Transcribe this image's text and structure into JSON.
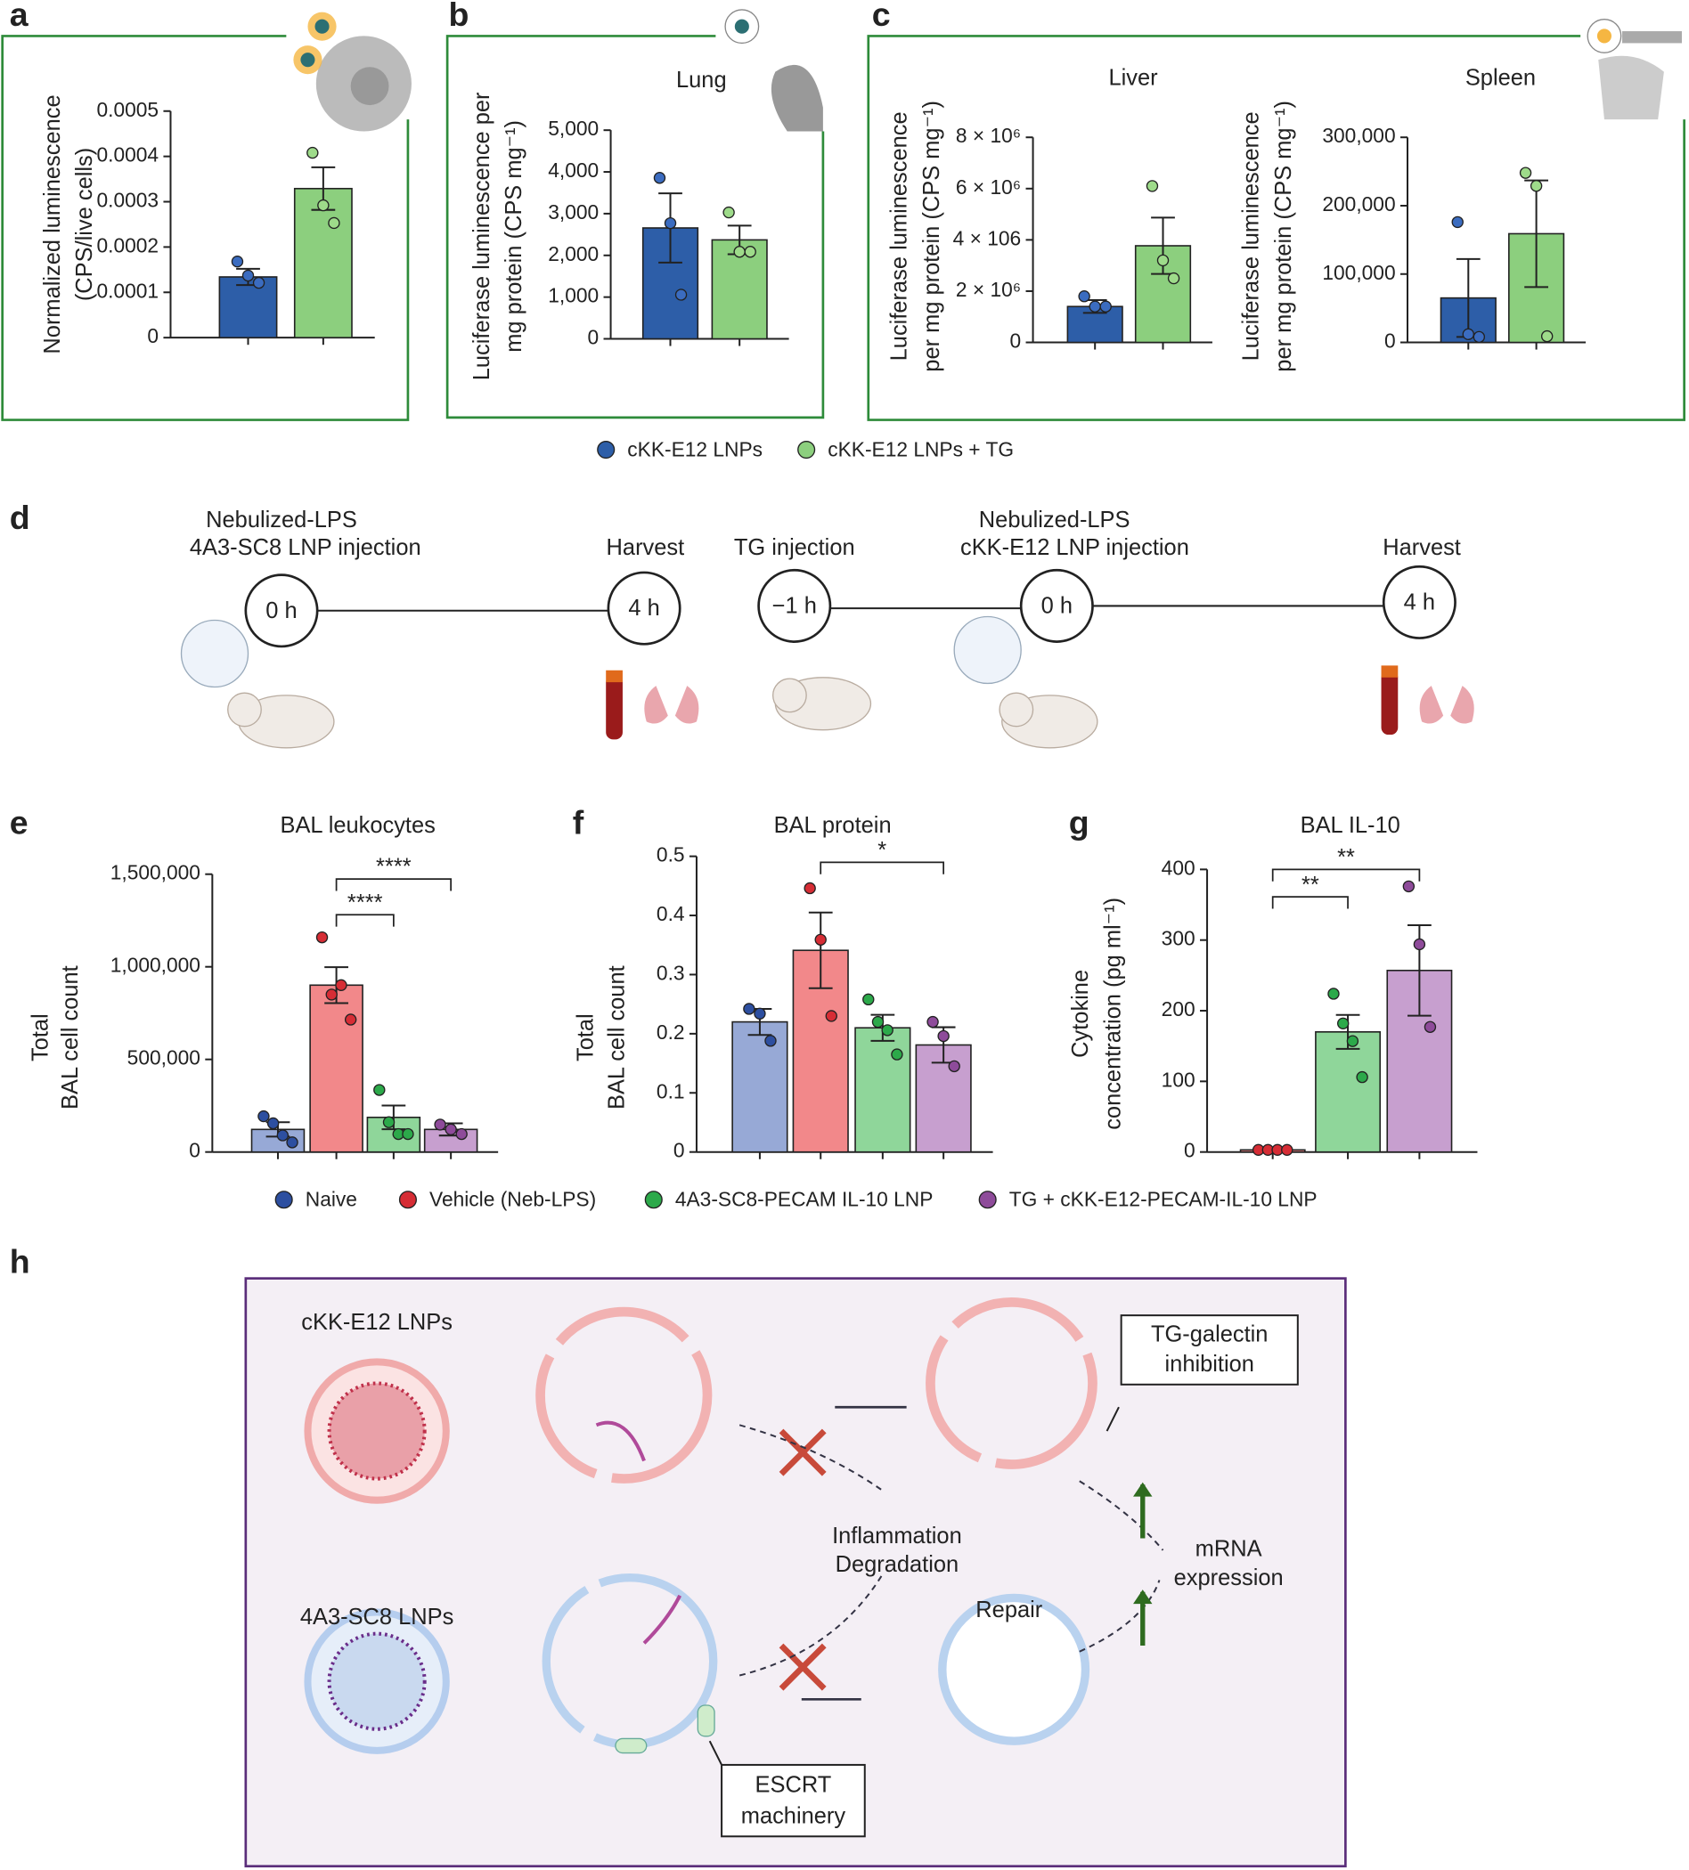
{
  "chart_data": [
    {
      "type": "bar",
      "panel": "a",
      "ylabel": [
        "Normalized luminescence",
        "(CPS/live cells)"
      ],
      "ylim": [
        0,
        0.0005
      ],
      "yticks": [
        0,
        0.0001,
        0.0002,
        0.0003,
        0.0004,
        0.0005
      ],
      "bars": [
        {
          "color": "#2d5ea8",
          "point_color": "#3b6cc0",
          "value": 0.000134,
          "error": 1.8e-05,
          "points": [
            0.000168,
            0.000137,
            0.000121
          ]
        },
        {
          "color": "#8ccf7e",
          "point_color": "#9edb8a",
          "value": 0.000329,
          "error": 4.7e-05,
          "points": [
            0.000408,
            0.000292,
            0.000253
          ]
        }
      ]
    },
    {
      "type": "bar",
      "panel": "b",
      "title": "Lung",
      "ylabel": [
        "Luciferase luminescence per",
        "mg protein (CPS mg⁻¹)"
      ],
      "ylim": [
        0,
        5000
      ],
      "yticks": [
        0,
        {
          "value": 1000,
          "label": "1,000"
        },
        {
          "value": 2000,
          "label": "2,000"
        },
        {
          "value": 3000,
          "label": "3,000"
        },
        {
          "value": 4000,
          "label": "4,000"
        },
        {
          "value": 5000,
          "label": "5,000"
        }
      ],
      "bars": [
        {
          "color": "#2d5ea8",
          "point_color": "#3b6cc0",
          "value": 2657,
          "error": 829,
          "points": [
            3857,
            2771,
            1057
          ]
        },
        {
          "color": "#8ccf7e",
          "point_color": "#9edb8a",
          "value": 2371,
          "error": 343,
          "points": [
            3029,
            2086,
            2086
          ]
        }
      ]
    },
    {
      "type": "bar",
      "panel": "c",
      "title": "Liver",
      "ylabel": [
        "Luciferase luminescence",
        "per mg protein (CPS mg⁻¹)"
      ],
      "ylim": [
        0,
        8000000
      ],
      "yticks": [
        0,
        {
          "value": 2000000,
          "label": "2 × 10⁶"
        },
        {
          "value": 4000000,
          "label": "4 × 106"
        },
        {
          "value": 6000000,
          "label": "6 × 10⁶"
        },
        {
          "value": 8000000,
          "label": "8 × 10⁶"
        }
      ],
      "bars": [
        {
          "color": "#2d5ea8",
          "point_color": "#3b6cc0",
          "value": 1400000,
          "error": 250000,
          "points": [
            1800000,
            1400000,
            1400000
          ]
        },
        {
          "color": "#8ccf7e",
          "point_color": "#9edb8a",
          "value": 3770000,
          "error": 1100000,
          "points": [
            6100000,
            3200000,
            2500000
          ]
        }
      ]
    },
    {
      "type": "bar",
      "title": "Spleen",
      "ylabel": [
        "Luciferase luminescence",
        "per mg protein (CPS mg⁻¹)"
      ],
      "ylim": [
        0,
        300000
      ],
      "yticks": [
        0,
        {
          "value": 100000,
          "label": "100,000"
        },
        {
          "value": 200000,
          "label": "200,000"
        },
        {
          "value": 300000,
          "label": "300,000"
        }
      ],
      "bars": [
        {
          "color": "#2d5ea8",
          "point_color": "#3b6cc0",
          "value": 65000,
          "error": 57000,
          "points": [
            176000,
            12000,
            8000
          ]
        },
        {
          "color": "#8ccf7e",
          "point_color": "#9edb8a",
          "value": 159000,
          "error": 78000,
          "points": [
            248000,
            229000,
            9000
          ]
        }
      ]
    },
    {
      "type": "bar",
      "panel": "e",
      "title": "BAL leukocytes",
      "ylabel": [
        "Total",
        "BAL cell count"
      ],
      "ylim": [
        0,
        1500000
      ],
      "yticks": [
        0,
        {
          "value": 500000,
          "label": "500,000"
        },
        {
          "value": 1000000,
          "label": "1,000,000"
        },
        {
          "value": 1500000,
          "label": "1,500,000"
        }
      ],
      "annotations": [
        "****",
        "****"
      ],
      "bars": [
        {
          "color": "#97a9d6",
          "point_color": "#2d4fa0",
          "value": 122000,
          "error": 39000,
          "points": [
            193000,
            155000,
            90000,
            52000
          ]
        },
        {
          "color": "#f2888a",
          "point_color": "#d62d35",
          "value": 901000,
          "error": 97000,
          "points": [
            1159000,
            850000,
            901000,
            715000
          ]
        },
        {
          "color": "#8fd69a",
          "point_color": "#2ca94a",
          "value": 187000,
          "error": 64000,
          "points": [
            335000,
            161000,
            97000,
            97000
          ]
        },
        {
          "color": "#c79fcf",
          "point_color": "#8e4b9a",
          "value": 122000,
          "error": 33000,
          "points": [
            148000,
            122000,
            97000
          ]
        }
      ]
    },
    {
      "type": "bar",
      "panel": "f",
      "title": "BAL protein",
      "ylabel": [
        "Total",
        "BAL cell count"
      ],
      "ylim": [
        0,
        0.5
      ],
      "yticks": [
        0,
        0.1,
        0.2,
        0.3,
        0.4,
        0.5
      ],
      "annotations": [
        "*"
      ],
      "bars": [
        {
          "color": "#97a9d6",
          "point_color": "#2d4fa0",
          "value": 0.22,
          "error": 0.022,
          "points": [
            0.242,
            0.234,
            0.188
          ]
        },
        {
          "color": "#f2888a",
          "point_color": "#d62d35",
          "value": 0.341,
          "error": 0.064,
          "points": [
            0.446,
            0.359,
            0.23
          ]
        },
        {
          "color": "#8fd69a",
          "point_color": "#2ca94a",
          "value": 0.21,
          "error": 0.022,
          "points": [
            0.258,
            0.22,
            0.206,
            0.165
          ]
        },
        {
          "color": "#c79fcf",
          "point_color": "#8e4b9a",
          "value": 0.181,
          "error": 0.03,
          "points": [
            0.22,
            0.196,
            0.145
          ]
        }
      ]
    },
    {
      "type": "bar",
      "panel": "g",
      "title": "BAL IL-10",
      "ylabel": [
        "Cytokine",
        "concentration (pg ml⁻¹)"
      ],
      "ylim": [
        0,
        400
      ],
      "yticks": [
        0,
        100,
        200,
        300,
        400
      ],
      "annotations": [
        "**",
        "**"
      ],
      "bars": [
        {
          "color": "#f2888a",
          "point_color": "#d62d35",
          "value": 3,
          "error": 0.5,
          "points": [
            3,
            3,
            3,
            3
          ]
        },
        {
          "color": "#8fd69a",
          "point_color": "#2ca94a",
          "value": 170,
          "error": 24,
          "points": [
            224,
            182,
            157,
            106
          ]
        },
        {
          "color": "#c79fcf",
          "point_color": "#8e4b9a",
          "value": 257,
          "error": 64,
          "points": [
            376,
            294,
            177
          ]
        }
      ]
    }
  ],
  "legend_abc": [
    {
      "name": "cKK-E12 LNPs",
      "color": "#2d5ea8"
    },
    {
      "name": "cKK-E12 LNPs + TG",
      "color": "#8ccf7e"
    }
  ],
  "legend_efg": [
    {
      "name": "Naive",
      "color": "#2d4fa0"
    },
    {
      "name": "Vehicle (Neb-LPS)",
      "color": "#d62d35"
    },
    {
      "name": "4A3-SC8-PECAM IL-10 LNP",
      "color": "#2ca94a"
    },
    {
      "name": "TG + cKK-E12-PECAM-IL-10 LNP",
      "color": "#8e4b9a"
    }
  ],
  "panel_d": {
    "label": "d",
    "events": [
      {
        "header": [
          "Nebulized-LPS",
          "4A3-SC8 LNP injection"
        ],
        "time": "0 h"
      },
      {
        "header": [
          "Harvest"
        ],
        "time": "4 h"
      },
      {
        "header": [
          "TG injection"
        ],
        "time": "−1 h"
      },
      {
        "header": [
          "Nebulized-LPS",
          "cKK-E12 LNP injection"
        ],
        "time": "0 h"
      },
      {
        "header": [
          "Harvest"
        ],
        "time": "4 h"
      }
    ]
  },
  "panel_h": {
    "label": "h",
    "lnp_top": "cKK-E12 LNPs",
    "lnp_bottom": "4A3-SC8 LNPs",
    "inflammation": [
      "Inflammation",
      "Degradation"
    ],
    "repair": "Repair",
    "expression": [
      "mRNA",
      "expression"
    ],
    "tg_box": [
      "TG-galectin",
      "inhibition"
    ],
    "escrt_box": [
      "ESCRT",
      "machinery"
    ]
  }
}
